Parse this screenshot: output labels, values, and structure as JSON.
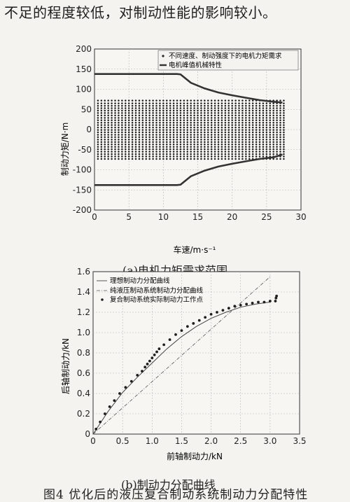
{
  "page": {
    "top_text": "不足的程度较低，对制动性能的影响较小。",
    "figure_caption": "图4   优化后的液压复合制动系统制动力分配特性"
  },
  "chart_data": [
    {
      "type": "scatter",
      "subtitle": "(a)电机力矩需求范围",
      "xlabel": "车速/m·s⁻¹",
      "ylabel": "制动力矩/N·m",
      "xlim": [
        0,
        30
      ],
      "ylim": [
        -200,
        200
      ],
      "xticks": [
        "0",
        "5",
        "10",
        "15",
        "20",
        "25",
        "30"
      ],
      "yticks": [
        "200",
        "150",
        "100",
        "50",
        "0",
        "-50",
        "-100",
        "-150",
        "-200"
      ],
      "grid": true,
      "legend_position": "top-right",
      "legend": [
        {
          "label": "不同速度、制动强度下的电机力矩需求",
          "marker": "dot"
        },
        {
          "label": "电机峰值机械特性",
          "marker": "line"
        }
      ],
      "series": [
        {
          "name": "不同速度、制动强度下的电机力矩需求",
          "x_range": [
            0.5,
            27.5
          ],
          "x_step": 0.5,
          "y_levels": [
            72,
            65,
            59,
            53,
            47,
            41,
            35,
            29,
            23,
            17,
            11,
            5,
            -1,
            -7,
            -13,
            -19,
            -25,
            -31,
            -37,
            -43,
            -49,
            -55,
            -61,
            -67,
            -73
          ]
        },
        {
          "name": "电机峰值机械特性",
          "x": [
            0,
            2,
            4,
            6,
            8,
            10,
            12,
            12.5,
            14,
            16,
            18,
            20,
            22,
            24,
            26,
            27.3
          ],
          "y": [
            138,
            138,
            138,
            138,
            138,
            138,
            138,
            137,
            116,
            102,
            92,
            85,
            79,
            73,
            69,
            67
          ]
        },
        {
          "name": "电机峰值机械特性",
          "x": [
            0,
            2,
            4,
            6,
            8,
            10,
            12,
            12.5,
            14,
            16,
            18,
            20,
            22,
            24,
            26,
            27.3
          ],
          "y": [
            -138,
            -138,
            -138,
            -138,
            -138,
            -138,
            -138,
            -137,
            -116,
            -102,
            -92,
            -85,
            -79,
            -73,
            -69,
            -62
          ]
        }
      ]
    },
    {
      "type": "line",
      "subtitle": "(b)制动力分配曲线",
      "xlabel": "前轴制动力/kN",
      "ylabel": "后轴制动力/kN",
      "xlim": [
        0,
        3.5
      ],
      "ylim": [
        0,
        1.6
      ],
      "xticks": [
        "0",
        "0.5",
        "1.0",
        "1.5",
        "2.0",
        "2.5",
        "3.0",
        "3.5"
      ],
      "yticks": [
        "1.6",
        "1.4",
        "1.2",
        "1.0",
        "0.8",
        "0.6",
        "0.4",
        "0.2",
        "0"
      ],
      "grid": true,
      "legend_position": "top-left",
      "legend": [
        {
          "label": "理想制动力分配曲线",
          "marker": "line"
        },
        {
          "label": "纯液压制动系统制动力分配曲线",
          "marker": "dashdot"
        },
        {
          "label": "复合制动系统实际制动力工作点",
          "marker": "dot"
        }
      ],
      "series": [
        {
          "name": "理想制动力分配曲线",
          "x": [
            0,
            0.25,
            0.5,
            0.75,
            1.0,
            1.25,
            1.5,
            1.75,
            2.0,
            2.25,
            2.5,
            2.75,
            3.0
          ],
          "y": [
            0,
            0.22,
            0.41,
            0.56,
            0.7,
            0.84,
            0.96,
            1.06,
            1.14,
            1.2,
            1.25,
            1.28,
            1.3
          ]
        },
        {
          "name": "纯液压制动系统制动力分配曲线",
          "x": [
            0,
            3.0
          ],
          "y": [
            0,
            1.55
          ]
        },
        {
          "name": "复合制动系统实际制动力工作点",
          "x": [
            0.05,
            0.12,
            0.2,
            0.28,
            0.36,
            0.45,
            0.55,
            0.65,
            0.75,
            0.83,
            0.88,
            0.92,
            0.96,
            1.0,
            1.04,
            1.08,
            1.12,
            1.2,
            1.3,
            1.4,
            1.5,
            1.6,
            1.7,
            1.8,
            1.9,
            2.0,
            2.1,
            2.2,
            2.3,
            2.4,
            2.5,
            2.6,
            2.7,
            2.8,
            2.9,
            3.0,
            3.09,
            3.1,
            3.11
          ],
          "y": [
            0.05,
            0.12,
            0.2,
            0.27,
            0.33,
            0.4,
            0.46,
            0.52,
            0.58,
            0.62,
            0.66,
            0.69,
            0.72,
            0.75,
            0.78,
            0.81,
            0.84,
            0.88,
            0.93,
            0.98,
            1.02,
            1.06,
            1.09,
            1.12,
            1.15,
            1.18,
            1.2,
            1.22,
            1.24,
            1.26,
            1.27,
            1.28,
            1.29,
            1.3,
            1.3,
            1.31,
            1.31,
            1.34,
            1.36
          ]
        }
      ]
    }
  ]
}
